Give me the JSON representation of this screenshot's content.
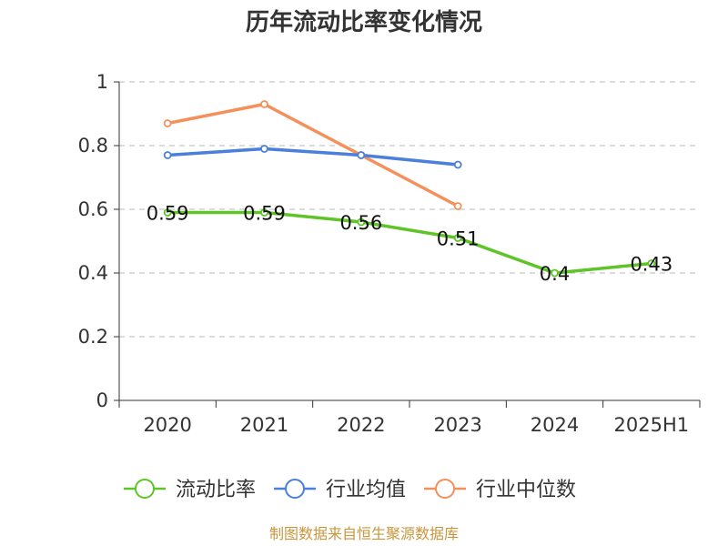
{
  "chart_data": {
    "type": "line",
    "title": "历年流动比率变化情况",
    "categories": [
      "2020",
      "2021",
      "2022",
      "2023",
      "2024",
      "2025H1"
    ],
    "ylim": [
      0,
      1
    ],
    "yticks": [
      "0",
      "0.2",
      "0.4",
      "0.6",
      "0.8",
      "1"
    ],
    "grid": true,
    "legend_position": "bottom",
    "series": [
      {
        "name": "流动比率",
        "color": "#5ec428",
        "values": [
          0.59,
          0.59,
          0.56,
          0.51,
          0.4,
          0.43
        ],
        "labels": [
          "0.59",
          "0.59",
          "0.56",
          "0.51",
          "0.4",
          "0.43"
        ]
      },
      {
        "name": "行业均值",
        "color": "#4a7fdb",
        "values": [
          0.77,
          0.79,
          0.77,
          0.74,
          null,
          null
        ]
      },
      {
        "name": "行业中位数",
        "color": "#f5905a",
        "values": [
          0.87,
          0.93,
          0.77,
          0.61,
          null,
          null
        ]
      }
    ]
  },
  "source": "制图数据来自恒生聚源数据库"
}
